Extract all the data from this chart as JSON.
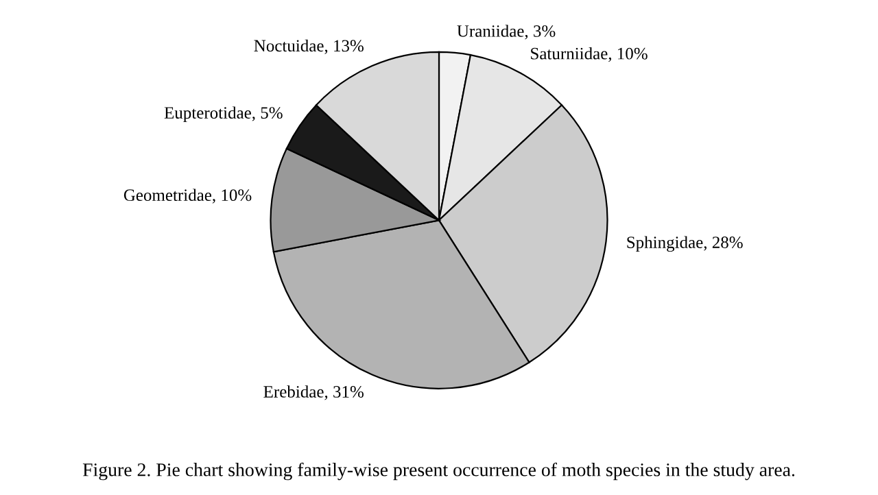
{
  "chart_data": {
    "type": "pie",
    "categories": [
      "Uraniidae",
      "Saturniidae",
      "Sphingidae",
      "Erebidae",
      "Geometridae",
      "Eupterotidae",
      "Noctuidae"
    ],
    "values": [
      3,
      10,
      28,
      31,
      10,
      5,
      13
    ],
    "value_labels": [
      "3%",
      "10%",
      "28%",
      "31%",
      "10%",
      "5%",
      "13%"
    ],
    "colors": [
      "#f2f2f2",
      "#e6e6e6",
      "#cccccc",
      "#b3b3b3",
      "#999999",
      "#1a1a1a",
      "#d9d9d9"
    ],
    "annotations": [
      "Figure 2. Pie chart showing family-wise present occurrence of moth species in the study area."
    ]
  }
}
